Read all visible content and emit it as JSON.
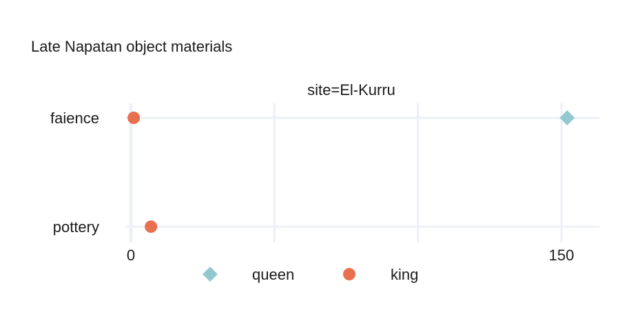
{
  "chart_data": {
    "type": "scatter",
    "title": "Late Napatan object materials",
    "facet_label": "site=El-Kurru",
    "categories": [
      "faience",
      "pottery"
    ],
    "x_ticks": [
      0,
      150
    ],
    "xlim": [
      0,
      163
    ],
    "grid": true,
    "legend_position": "bottom",
    "series": [
      {
        "name": "queen",
        "marker": "diamond",
        "color": "#92c9d1",
        "points": [
          {
            "category": "faience",
            "x": 152
          }
        ]
      },
      {
        "name": "king",
        "marker": "circle",
        "color": "#e8704e",
        "points": [
          {
            "category": "faience",
            "x": 1
          },
          {
            "category": "pottery",
            "x": 7
          }
        ]
      }
    ]
  }
}
